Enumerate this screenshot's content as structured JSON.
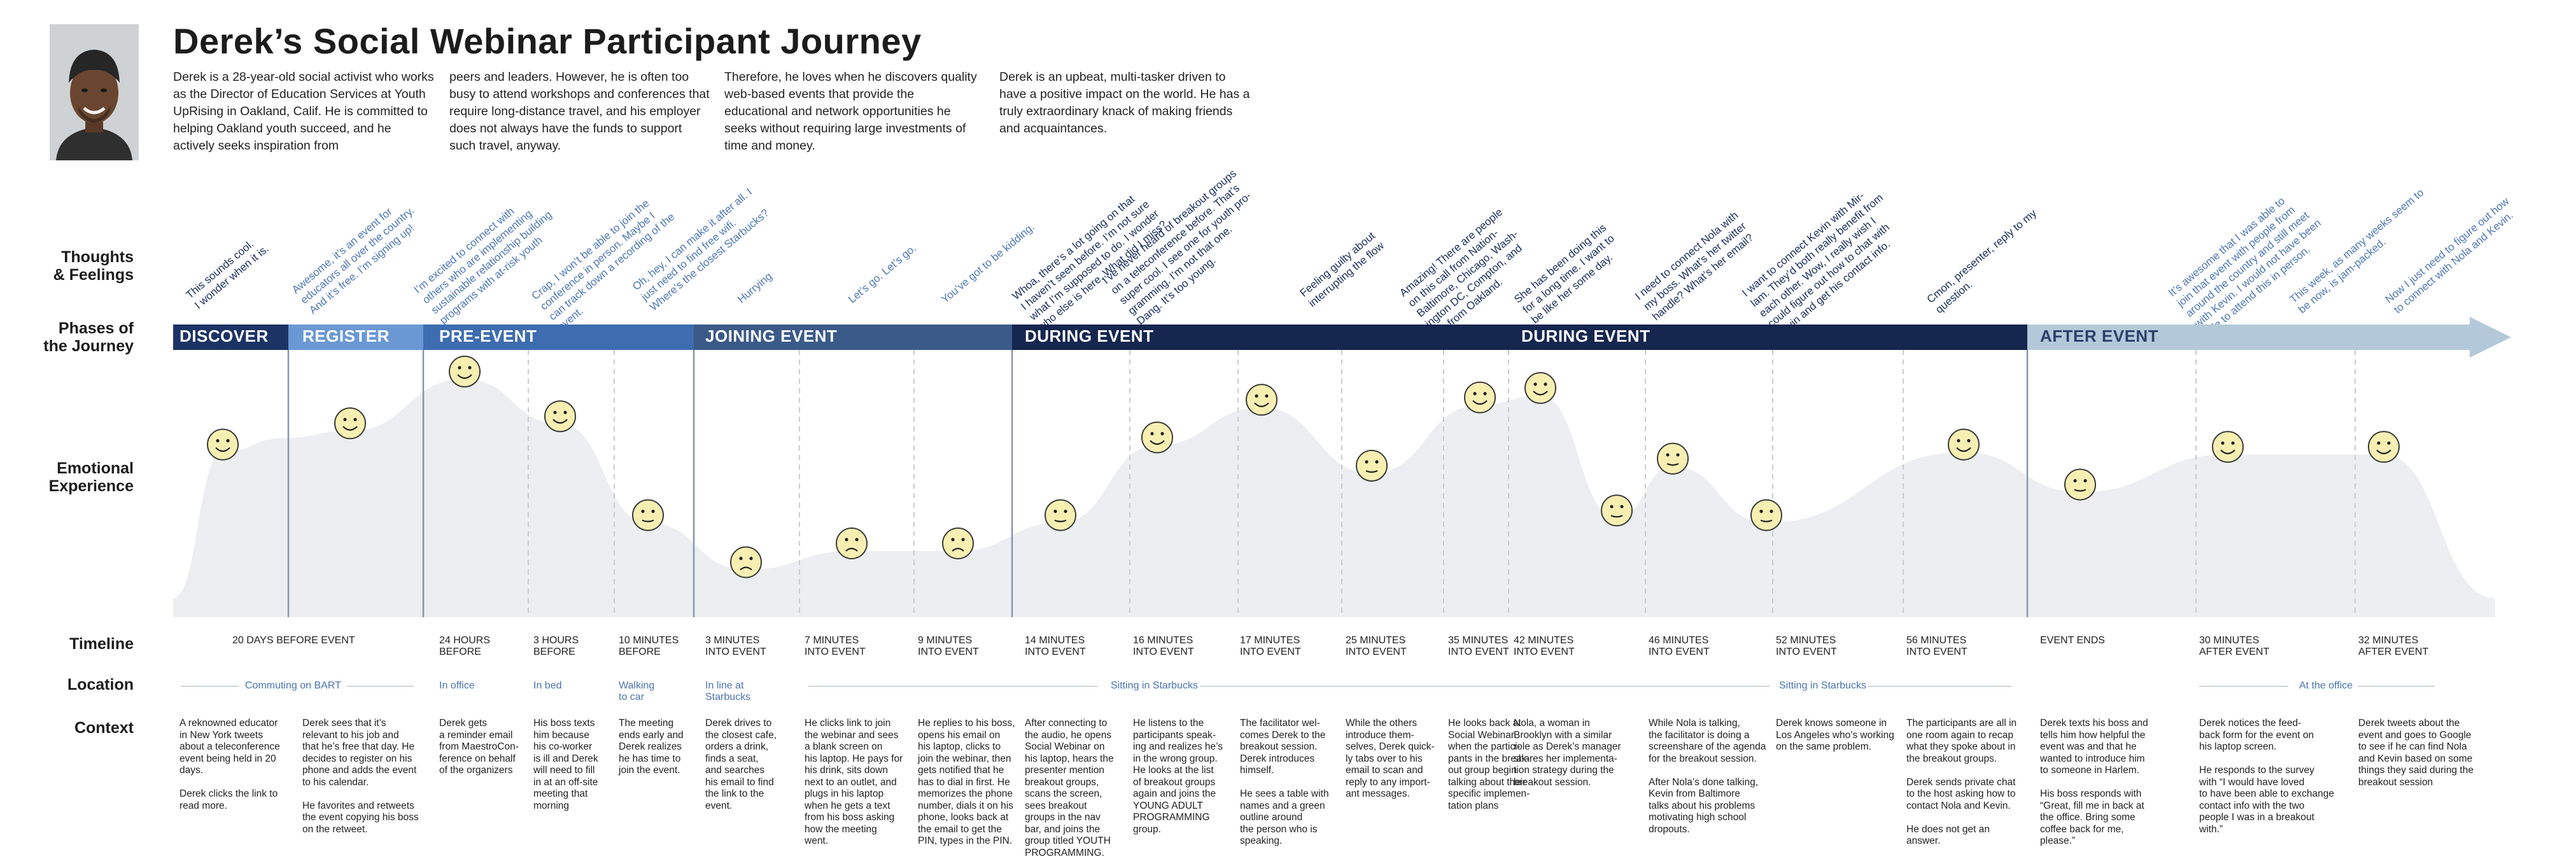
{
  "title": "Derek’s Social Webinar Participant Journey",
  "intro": [
    "Derek is a 28-year-old social activist who works as the Director of Education Services at Youth UpRising in Oakland, Calif. He is committed to helping Oakland youth succeed, and he actively seeks inspiration from",
    "peers and leaders. However, he is often too busy to attend workshops and conferences that require long-distance travel, and his employer does not always have the funds to support such travel, anyway.",
    "Therefore, he loves when he discovers quality web-based events that provide the educational and network opportunities he seeks without requiring large investments of time and money.",
    "Derek is an upbeat, multi-tasker driven to have a positive impact on the world. He has a truly extraordinary knack of making friends and acquaintances."
  ],
  "row_labels": {
    "thoughts": "Thoughts\n& Feelings",
    "phases": "Phases of\nthe Journey",
    "emotional": "Emotional\nExperience",
    "timeline": "Timeline",
    "location": "Location",
    "context": "Context"
  },
  "phases": [
    "DISCOVER",
    "REGISTER",
    "PRE-EVENT",
    "JOINING EVENT",
    "DURING EVENT",
    "DURING EVENT",
    "AFTER EVENT"
  ],
  "thoughts": [
    "This sounds cool.\nI wonder when it is.",
    "Awesome, it’s an event for\neducators all over the country.\nAnd it’s free. I’m signing up!",
    "I’m excited to connect with\nothers who are implementing\nsustainable relationship building\nprograms with at-risk youth",
    "Crap, I won’t be able to join the\nconference in person. Maybe I\ncan track down a recording of the\nevent.",
    "Oh, hey, I can make it after all. I\njust need to find free wifi.\nWhere’s the closest Starbucks?",
    "Hurrying",
    "Let’s go. Let’s go.",
    "You’ve got to be kidding.",
    "Whoa, there’s a lot going on that\nI haven’t seen before. I’m not sure\nwhat I’m supposed to do. I wonder\nwho else is here. What did I miss?",
    "I’ve never heard of breakout groups\non a teleconference before. That’s\nsuper cool. I see one for youth pro-\ngramming. I’m not that one.\nDang. It’s too young.",
    "Feeling guilty about\ninterrupting the flow",
    "Amazing! There are people\non this call from Nation-\nBaltimore, Chicago, Wash-\nington DC, Compton, and\nI’m from Oakland.",
    "She has been doing this\nfor a long time. I want to\nbe like her some day.",
    "I need to connect Nola with\nmy boss. What’s her twitter\nhandle? What’s her email?",
    "I want to connect Kevin with Mir-\nlam. They’d both really benefit from\neach other. Wow, I really wish I\ncould figure out how to chat with\nKevin and get his contact info.",
    "Cmon, presenter, reply to my\nquestion.",
    "It’s awesome that I was able to\njoin that event with people from\naround the country and still meet\nwith Kevin. I would not have been\nable to attend this in person.",
    "This week, as many weeks seem to\nbe now, is jam-packed.",
    "Now I just need to figure out how\nto connect with Nola and Kevin."
  ],
  "timeline": [
    "20 DAYS BEFORE EVENT",
    "24 HOURS\nBEFORE",
    "3 HOURS\nBEFORE",
    "10 MINUTES\nBEFORE",
    "3 MINUTES\nINTO EVENT",
    "7 MINUTES\nINTO EVENT",
    "9 MINUTES\nINTO EVENT",
    "14 MINUTES\nINTO EVENT",
    "16 MINUTES\nINTO EVENT",
    "17 MINUTES\nINTO EVENT",
    "25 MINUTES\nINTO EVENT",
    "35 MINUTES\nINTO EVENT",
    "42 MINUTES\nINTO EVENT",
    "46 MINUTES\nINTO EVENT",
    "52 MINUTES\nINTO EVENT",
    "56 MINUTES\nINTO EVENT",
    "EVENT ENDS",
    "30 MINUTES\nAFTER EVENT",
    "32 MINUTES\nAFTER EVENT"
  ],
  "locations": [
    "Commuting on BART",
    "In office",
    "In bed",
    "Walking\nto car",
    "In line at\nStarbucks",
    "Sitting in Starbucks",
    "Sitting in Starbucks",
    "At the office"
  ],
  "context": [
    "A reknowned educator\nin New York tweets\nabout a teleconference\nevent being held in 20\ndays.\n\nDerek clicks the link to\nread more.",
    "Derek sees that it’s\nrelevant to his job and\nthat he’s free that day. He\ndecides to register on his\nphone and adds the event\nto his calendar.\n\nHe favorites and retweets\nthe event copying his boss\non the retweet.",
    "Derek gets\na reminder email\nfrom MaestroCon-\nference on behalf\nof the organizers",
    "His boss texts\nhim because\nhis co-worker\nis ill and Derek\nwill need to fill\nin at an off-site\nmeeting that\nmorning",
    "The meeting\nends early and\nDerek realizes\nhe has time to\njoin the event.",
    "Derek drives to\nthe closest cafe,\norders a drink,\nfinds a seat,\nand searches\nhis email to find\nthe link to the\nevent.",
    "He clicks link to join\nthe webinar and sees\na blank screen on\nhis laptop. He pays for\nhis drink, sits down\nnext to an outlet, and\nplugs in his laptop\nwhen he gets a text\nfrom his boss asking\nhow the meeting\nwent.",
    "He replies to his boss,\nopens his email on\nhis laptop, clicks to\njoin the webinar, then\ngets notified that he\nhas to dial in first. He\nmemorizes the phone\nnumber, dials it on his\nphone, looks back at\nthe email to get the\nPIN, types in the PIN.",
    "After connecting to\nthe audio, he opens\nSocial Webinar on\nhis laptop, hears the\npresenter mention\nbreakout groups,\nscans the screen,\nsees breakout\ngroups in the nav\nbar, and joins the\ngroup titled YOUTH\nPROGRAMMING.",
    "He listens to the\nparticipants speak-\ning and realizes he’s\nin the wrong group.\nHe looks at the list\nof breakout groups\nagain and joins the\nYOUNG ADULT\nPROGRAMMING\ngroup.",
    "The facilitator wel-\ncomes Derek to the\nbreakout session.\nDerek introduces\nhimself.\n\nHe sees a table with\nnames and a green\noutline around\nthe person who is\nspeaking.",
    "While the others\nintroduce them-\nselves, Derek quick-\nly tabs over to his\nemail to scan and\nreply to any import-\nant messages.",
    "He looks back at\nSocial Webinar\nwhen the partici-\npants in the break-\nout group begin\ntalking about their\nspecific implemen-\ntation plans",
    "Nola, a woman in\nBrooklyn with a similar\nrole as Derek’s manager\nshares her implementa-\ntion strategy during the\nbreakout session.",
    "While Nola is talking,\nthe facilitator is doing a\nscreenshare of the agenda\nfor the breakout session.\n\nAfter Nola’s done talking,\nKevin from Baltimore\ntalks about his problems\nmotivating high school\ndropouts.",
    "Derek knows someone in\nLos Angeles who’s working\non the same problem.",
    "The participants are all in\none room again to recap\nwhat they spoke about in\nthe breakout groups.\n\nDerek sends private chat\nto the host asking how to\ncontact Nola and Kevin.\n\nHe does not get an\nanswer.",
    "Derek texts his boss and\ntells him how helpful the\nevent was and that he\nwanted to introduce him\nto someone in Harlem.\n\nHis boss responds with\n“Great, fill me in back at\nthe office. Bring some\ncoffee back for me,\nplease.”",
    "Derek notices the feed-\nback form for the event on\nhis laptop screen.\n\nHe responds to the survey\nwith “I would have loved\nto have been able to exchange\ncontact info with the two\npeople I was in a breakout\nwith.”",
    "Derek tweets about the\nevent and goes to Google\nto see if he can find Nola\nand Kevin based on some\nthings they said during the\nbreakout session"
  ],
  "emotion_levels": [
    0.62,
    0.71,
    0.93,
    0.74,
    0.32,
    0.12,
    0.2,
    0.2,
    0.32,
    0.65,
    0.81,
    0.53,
    0.82,
    0.86,
    0.34,
    0.56,
    0.32,
    0.62,
    0.45,
    0.61,
    0.61
  ],
  "colors": {
    "discover": "#1c3366",
    "register": "#6a98d4",
    "pre_event": "#3e6cb0",
    "joining": "#3a5a88",
    "during": "#15264f",
    "after_arrow": "#b3c9d9",
    "curve_fill": "#eceef1",
    "face": "#f7efb2"
  }
}
